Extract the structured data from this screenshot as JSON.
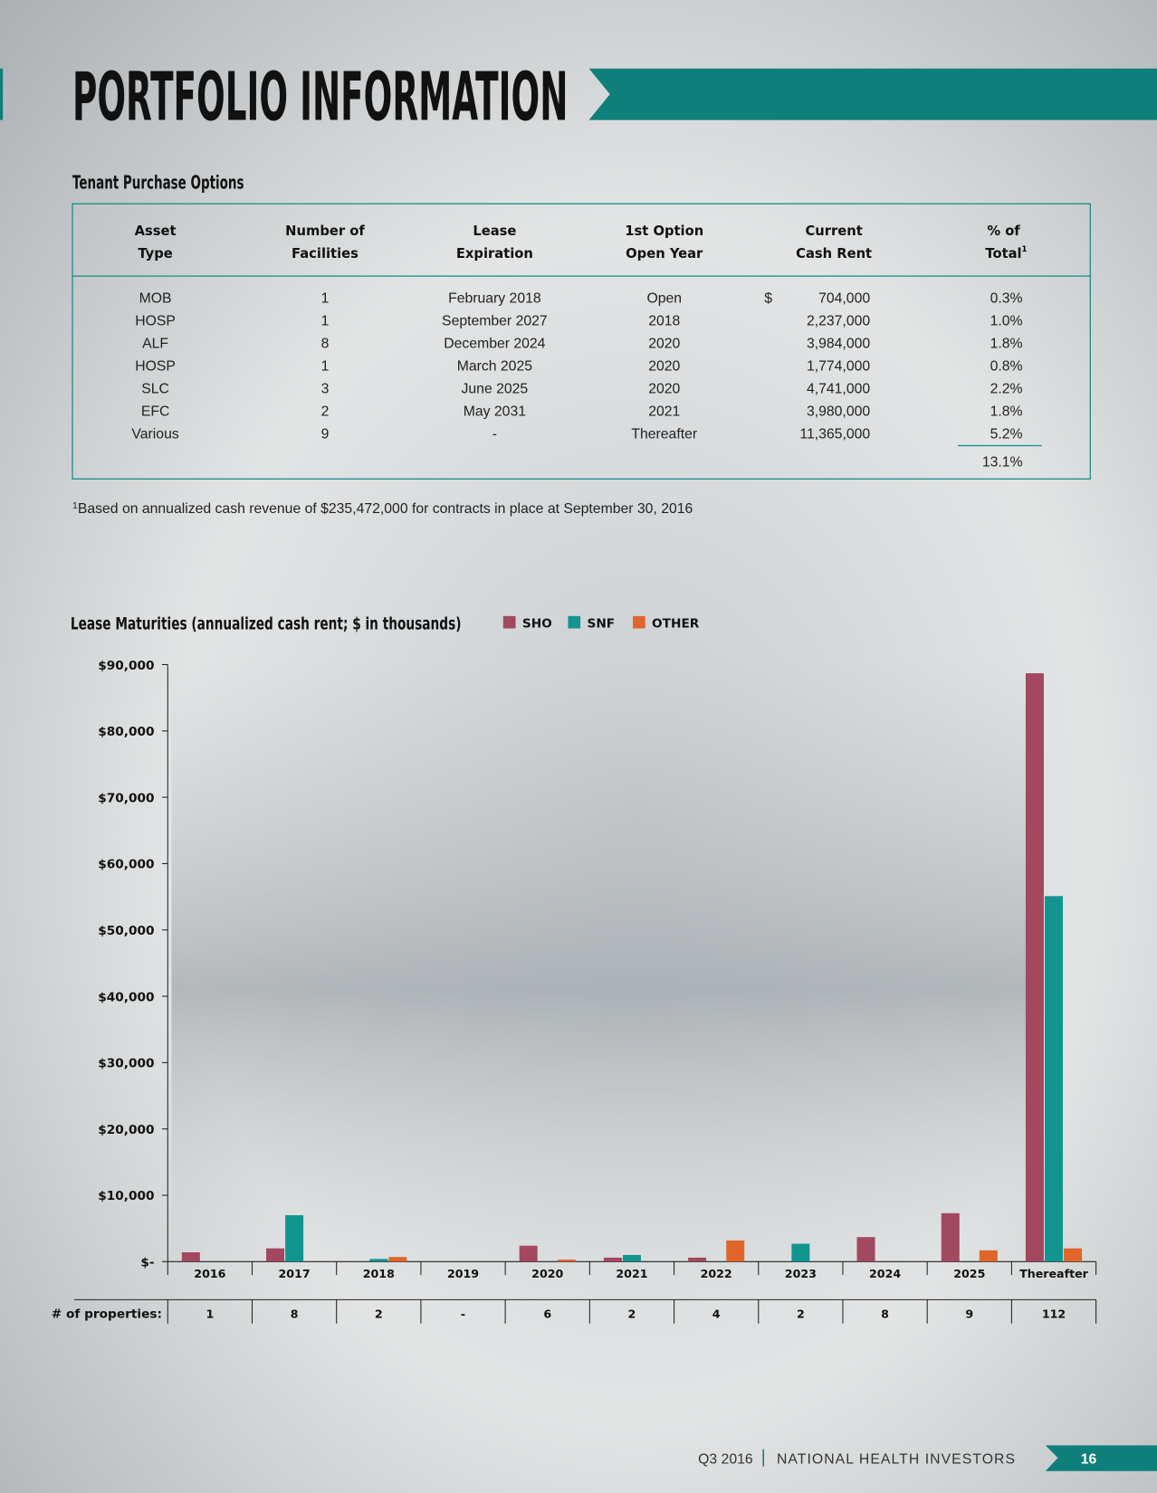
{
  "header": {
    "title": "PORTFOLIO INFORMATION"
  },
  "section_title": "Tenant Purchase Options",
  "table": {
    "headers": [
      [
        "Asset",
        "Type"
      ],
      [
        "Number of",
        "Facilities"
      ],
      [
        "Lease",
        "Expiration"
      ],
      [
        "1st Option",
        "Open Year"
      ],
      [
        "Current",
        "Cash Rent"
      ],
      [
        "% of",
        "Total"
      ]
    ],
    "header_note_mark": "1",
    "currency_symbol": "$",
    "rows": [
      [
        "MOB",
        "1",
        "February 2018",
        "Open",
        "704,000",
        "0.3%"
      ],
      [
        "HOSP",
        "1",
        "September 2027",
        "2018",
        "2,237,000",
        "1.0%"
      ],
      [
        "ALF",
        "8",
        "December 2024",
        "2020",
        "3,984,000",
        "1.8%"
      ],
      [
        "HOSP",
        "1",
        "March 2025",
        "2020",
        "1,774,000",
        "0.8%"
      ],
      [
        "SLC",
        "3",
        "June 2025",
        "2020",
        "4,741,000",
        "2.2%"
      ],
      [
        "EFC",
        "2",
        "May 2031",
        "2021",
        "3,980,000",
        "1.8%"
      ],
      [
        "Various",
        "9",
        "-",
        "Thereafter",
        "11,365,000",
        "5.2%"
      ]
    ],
    "total": "13.1%"
  },
  "footnote": {
    "mark": "1",
    "text": "Based on annualized cash revenue of $235,472,000 for contracts in place at September 30, 2016"
  },
  "chart_data": {
    "type": "bar",
    "title": "Lease Maturities (annualized cash rent; $ in thousands)",
    "categories": [
      "2016",
      "2017",
      "2018",
      "2019",
      "2020",
      "2021",
      "2022",
      "2023",
      "2024",
      "2025",
      "Thereafter"
    ],
    "series": [
      {
        "name": "SHO",
        "color": "#a2485f",
        "values": [
          1400,
          2000,
          0,
          0,
          2400,
          600,
          600,
          0,
          3700,
          7300,
          88700
        ]
      },
      {
        "name": "SNF",
        "color": "#13958f",
        "values": [
          0,
          7000,
          400,
          0,
          0,
          1000,
          0,
          2700,
          0,
          0,
          55100
        ]
      },
      {
        "name": "OTHER",
        "color": "#e0652b",
        "values": [
          0,
          0,
          700,
          0,
          300,
          0,
          3200,
          0,
          0,
          1700,
          2000
        ]
      }
    ],
    "ylim": [
      0,
      90000
    ],
    "yticks": [
      {
        "value": 0,
        "label": "$-"
      },
      {
        "value": 10000,
        "label": "$10,000"
      },
      {
        "value": 20000,
        "label": "$20,000"
      },
      {
        "value": 30000,
        "label": "$30,000"
      },
      {
        "value": 40000,
        "label": "$40,000"
      },
      {
        "value": 50000,
        "label": "$50,000"
      },
      {
        "value": 60000,
        "label": "$60,000"
      },
      {
        "value": 70000,
        "label": "$70,000"
      },
      {
        "value": 80000,
        "label": "$80,000"
      },
      {
        "value": 90000,
        "label": "$90,000"
      }
    ],
    "properties": {
      "label": "# of properties:",
      "values": [
        "1",
        "8",
        "2",
        "-",
        "6",
        "2",
        "4",
        "2",
        "8",
        "9",
        "112"
      ]
    }
  },
  "footer": {
    "period": "Q3 2016",
    "company": "NATIONAL HEALTH INVESTORS",
    "page": "16"
  }
}
